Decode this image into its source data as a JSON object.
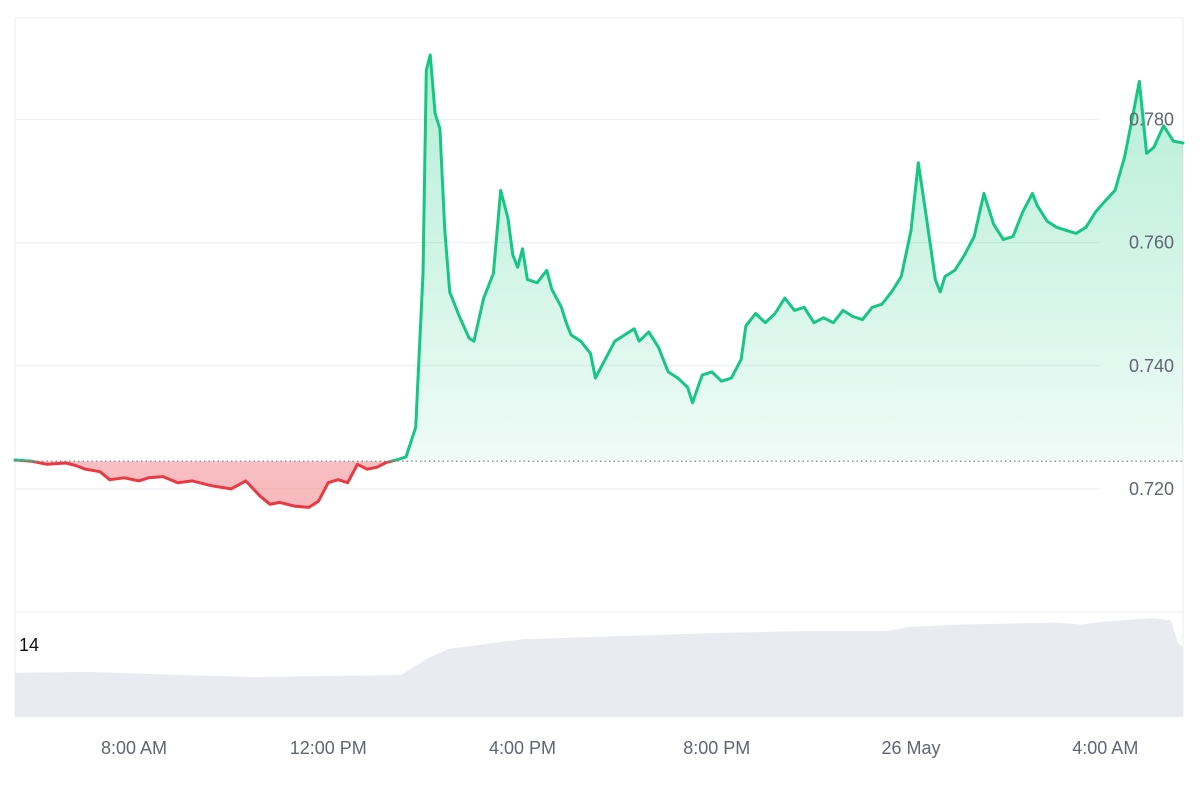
{
  "colors": {
    "up": "#16c784",
    "down": "#ea3943",
    "up_fill": "#16c784",
    "down_fill": "#ea3943",
    "volume": "#e9ebf0",
    "grid": "#eceef2",
    "baseline": "#7a7f88",
    "axis_text": "#5f6672"
  },
  "chart_data": {
    "type": "area",
    "baseline": 0.7245,
    "ylim": [
      0.7,
      0.7965
    ],
    "yticks": [
      0.72,
      0.74,
      0.76,
      0.78
    ],
    "ytick_labels": [
      "0.720",
      "0.740",
      "0.760",
      "0.780"
    ],
    "xlim": [
      5.55,
      29.6
    ],
    "x_ticks": [
      {
        "t": 8,
        "label": "8:00 AM"
      },
      {
        "t": 12,
        "label": "12:00 PM"
      },
      {
        "t": 16,
        "label": "4:00 PM"
      },
      {
        "t": 20,
        "label": "8:00 PM"
      },
      {
        "t": 24,
        "label": "26 May"
      },
      {
        "t": 28,
        "label": "4:00 AM"
      }
    ],
    "price_points": [
      [
        5.55,
        0.7247
      ],
      [
        5.9,
        0.7245
      ],
      [
        6.2,
        0.724
      ],
      [
        6.6,
        0.7242
      ],
      [
        6.8,
        0.7238
      ],
      [
        7.0,
        0.7232
      ],
      [
        7.3,
        0.7228
      ],
      [
        7.5,
        0.7215
      ],
      [
        7.8,
        0.7218
      ],
      [
        8.1,
        0.7213
      ],
      [
        8.3,
        0.7218
      ],
      [
        8.6,
        0.722
      ],
      [
        8.9,
        0.721
      ],
      [
        9.2,
        0.7213
      ],
      [
        9.6,
        0.7205
      ],
      [
        10.0,
        0.72
      ],
      [
        10.3,
        0.7213
      ],
      [
        10.6,
        0.7188
      ],
      [
        10.8,
        0.7175
      ],
      [
        11.0,
        0.7178
      ],
      [
        11.3,
        0.7172
      ],
      [
        11.6,
        0.717
      ],
      [
        11.8,
        0.718
      ],
      [
        12.0,
        0.721
      ],
      [
        12.2,
        0.7215
      ],
      [
        12.4,
        0.721
      ],
      [
        12.6,
        0.724
      ],
      [
        12.8,
        0.7232
      ],
      [
        13.0,
        0.7235
      ],
      [
        13.2,
        0.7243
      ],
      [
        13.4,
        0.7247
      ],
      [
        13.6,
        0.7252
      ],
      [
        13.8,
        0.73
      ],
      [
        13.95,
        0.755
      ],
      [
        14.02,
        0.788
      ],
      [
        14.1,
        0.7905
      ],
      [
        14.2,
        0.781
      ],
      [
        14.3,
        0.7785
      ],
      [
        14.4,
        0.762
      ],
      [
        14.5,
        0.752
      ],
      [
        14.7,
        0.748
      ],
      [
        14.9,
        0.7445
      ],
      [
        15.0,
        0.744
      ],
      [
        15.2,
        0.751
      ],
      [
        15.4,
        0.755
      ],
      [
        15.55,
        0.7685
      ],
      [
        15.7,
        0.764
      ],
      [
        15.8,
        0.758
      ],
      [
        15.9,
        0.756
      ],
      [
        16.0,
        0.759
      ],
      [
        16.1,
        0.754
      ],
      [
        16.3,
        0.7535
      ],
      [
        16.5,
        0.7555
      ],
      [
        16.6,
        0.7525
      ],
      [
        16.8,
        0.7495
      ],
      [
        16.9,
        0.747
      ],
      [
        17.0,
        0.745
      ],
      [
        17.2,
        0.744
      ],
      [
        17.4,
        0.742
      ],
      [
        17.5,
        0.738
      ],
      [
        17.7,
        0.741
      ],
      [
        17.9,
        0.744
      ],
      [
        18.1,
        0.745
      ],
      [
        18.3,
        0.746
      ],
      [
        18.4,
        0.744
      ],
      [
        18.6,
        0.7455
      ],
      [
        18.8,
        0.743
      ],
      [
        19.0,
        0.739
      ],
      [
        19.2,
        0.738
      ],
      [
        19.4,
        0.7365
      ],
      [
        19.5,
        0.734
      ],
      [
        19.7,
        0.7385
      ],
      [
        19.9,
        0.739
      ],
      [
        20.1,
        0.7375
      ],
      [
        20.3,
        0.738
      ],
      [
        20.5,
        0.741
      ],
      [
        20.6,
        0.7465
      ],
      [
        20.8,
        0.7485
      ],
      [
        21.0,
        0.747
      ],
      [
        21.2,
        0.7485
      ],
      [
        21.4,
        0.751
      ],
      [
        21.6,
        0.749
      ],
      [
        21.8,
        0.7495
      ],
      [
        22.0,
        0.747
      ],
      [
        22.2,
        0.7478
      ],
      [
        22.4,
        0.747
      ],
      [
        22.6,
        0.749
      ],
      [
        22.8,
        0.748
      ],
      [
        23.0,
        0.7475
      ],
      [
        23.2,
        0.7495
      ],
      [
        23.4,
        0.75
      ],
      [
        23.6,
        0.752
      ],
      [
        23.8,
        0.7545
      ],
      [
        24.0,
        0.762
      ],
      [
        24.15,
        0.773
      ],
      [
        24.3,
        0.765
      ],
      [
        24.5,
        0.754
      ],
      [
        24.6,
        0.752
      ],
      [
        24.7,
        0.7545
      ],
      [
        24.9,
        0.7555
      ],
      [
        25.1,
        0.758
      ],
      [
        25.3,
        0.761
      ],
      [
        25.5,
        0.768
      ],
      [
        25.7,
        0.763
      ],
      [
        25.9,
        0.7605
      ],
      [
        26.1,
        0.761
      ],
      [
        26.3,
        0.765
      ],
      [
        26.5,
        0.768
      ],
      [
        26.6,
        0.766
      ],
      [
        26.8,
        0.7635
      ],
      [
        27.0,
        0.7625
      ],
      [
        27.2,
        0.762
      ],
      [
        27.4,
        0.7615
      ],
      [
        27.6,
        0.7625
      ],
      [
        27.8,
        0.765
      ],
      [
        28.0,
        0.7668
      ],
      [
        28.2,
        0.7685
      ],
      [
        28.4,
        0.774
      ],
      [
        28.6,
        0.782
      ],
      [
        28.7,
        0.7862
      ],
      [
        28.85,
        0.7745
      ],
      [
        29.0,
        0.7755
      ],
      [
        29.2,
        0.779
      ],
      [
        29.4,
        0.7765
      ],
      [
        29.6,
        0.7762
      ]
    ]
  },
  "volume": {
    "label": "14",
    "points": [
      [
        5.55,
        0.42
      ],
      [
        7.0,
        0.43
      ],
      [
        9.0,
        0.4
      ],
      [
        10.5,
        0.38
      ],
      [
        12.0,
        0.39
      ],
      [
        13.5,
        0.4
      ],
      [
        14.05,
        0.56
      ],
      [
        14.5,
        0.65
      ],
      [
        16.0,
        0.74
      ],
      [
        18.0,
        0.77
      ],
      [
        20.0,
        0.8
      ],
      [
        22.0,
        0.82
      ],
      [
        23.5,
        0.82
      ],
      [
        24.0,
        0.86
      ],
      [
        25.0,
        0.88
      ],
      [
        27.0,
        0.9
      ],
      [
        27.5,
        0.88
      ],
      [
        28.0,
        0.91
      ],
      [
        28.6,
        0.93
      ],
      [
        29.0,
        0.94
      ],
      [
        29.35,
        0.92
      ],
      [
        29.5,
        0.7
      ],
      [
        29.6,
        0.67
      ]
    ]
  }
}
